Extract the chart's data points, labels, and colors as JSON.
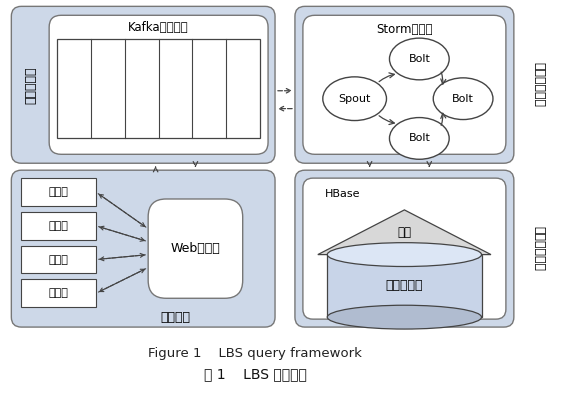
{
  "bg_color": "#cdd8e8",
  "white": "#ffffff",
  "title_en": "Figure 1    LBS query framework",
  "title_zh": "图 1    LBS 查询框架",
  "modules": {
    "middleware": "中间件模块",
    "query": "查询处理模块",
    "app": "应用模块",
    "index": "索引存储模块"
  },
  "labels": {
    "kafka": "Kafka消息队列",
    "storm": "Storm流处理",
    "spout": "Spout",
    "bolt": "Bolt",
    "web": "Web服务器",
    "clients": [
      "客户端",
      "客户端",
      "客户端",
      "客户端"
    ],
    "hbase": "HBase",
    "index_label": "索引",
    "mobile_data": "移动大数据"
  }
}
